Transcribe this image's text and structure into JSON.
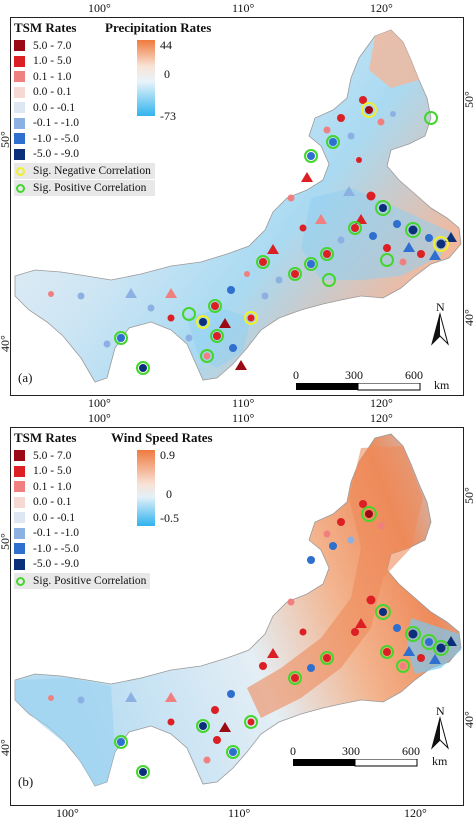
{
  "panels": [
    {
      "id": "a",
      "label": "(a)",
      "rate_title": "Precipitation Rates",
      "colorbar_labels": [
        "44",
        "0",
        "-73"
      ],
      "sig_legend": [
        "Sig. Negative Correlation",
        "Sig. Positive Correlation"
      ],
      "top_ticks": [
        "100°",
        "110°",
        "120°"
      ],
      "bottom_ticks": [
        "100°",
        "110°",
        "120°"
      ],
      "left_ticks": [
        "50°",
        "40°"
      ],
      "right_ticks": [
        "50°",
        "40°"
      ]
    },
    {
      "id": "b",
      "label": "(b)",
      "rate_title": "Wind Speed Rates",
      "colorbar_labels": [
        "0.9",
        "0",
        "-0.5"
      ],
      "sig_legend": [
        "Sig. Positive Correlation"
      ],
      "top_ticks": [
        "100°",
        "110°",
        "120°"
      ],
      "bottom_ticks": [
        "100°",
        "110°",
        "120°"
      ],
      "left_ticks": [
        "50°",
        "40°"
      ],
      "right_ticks": [
        "50°",
        "40°"
      ]
    }
  ],
  "tsm_title": "TSM Rates",
  "tsm_classes": [
    {
      "label": "5.0 - 7.0",
      "color": "#9b0a14"
    },
    {
      "label": "1.0 - 5.0",
      "color": "#dc1f24"
    },
    {
      "label": "0.1 - 1.0",
      "color": "#f08080"
    },
    {
      "label": "0.0 - 0.1",
      "color": "#f6d9d3"
    },
    {
      "label": "0.0 - -0.1",
      "color": "#dfe6f3"
    },
    {
      "label": "-0.1 - -1.0",
      "color": "#8db0e3"
    },
    {
      "label": "-1.0 - -5.0",
      "color": "#2e6fcf"
    },
    {
      "label": "-5.0 - -9.0",
      "color": "#0b2f7a"
    }
  ],
  "sig_colors": {
    "negative": "#f0f028",
    "positive": "#44d62c"
  },
  "scale": {
    "labels": [
      "0",
      "300",
      "600"
    ],
    "unit": "km"
  },
  "north_label": "N"
}
